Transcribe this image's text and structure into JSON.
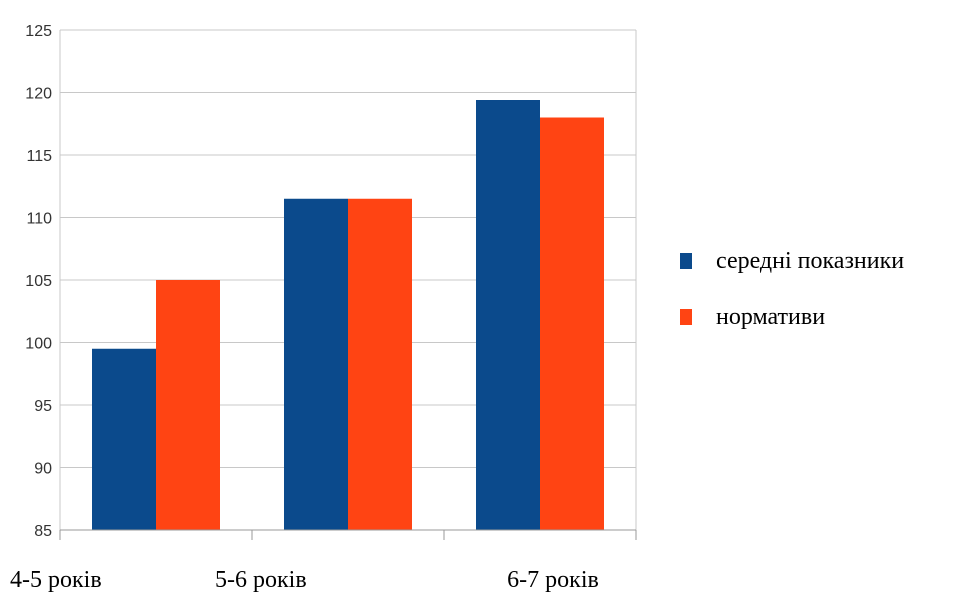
{
  "chart_data": {
    "type": "bar",
    "categories": [
      "4-5 років",
      "5-6 років",
      "6-7 років"
    ],
    "series": [
      {
        "name": "середні показники",
        "color": "#0b4a8c",
        "values": [
          99.5,
          111.5,
          119.4
        ]
      },
      {
        "name": "нормативи",
        "color": "#ff4413",
        "values": [
          105,
          111.5,
          118
        ]
      }
    ],
    "yticks": [
      85,
      90,
      95,
      100,
      105,
      110,
      115,
      120,
      125
    ],
    "ylim": [
      85,
      125
    ],
    "grid": true,
    "legend_position": "right"
  }
}
